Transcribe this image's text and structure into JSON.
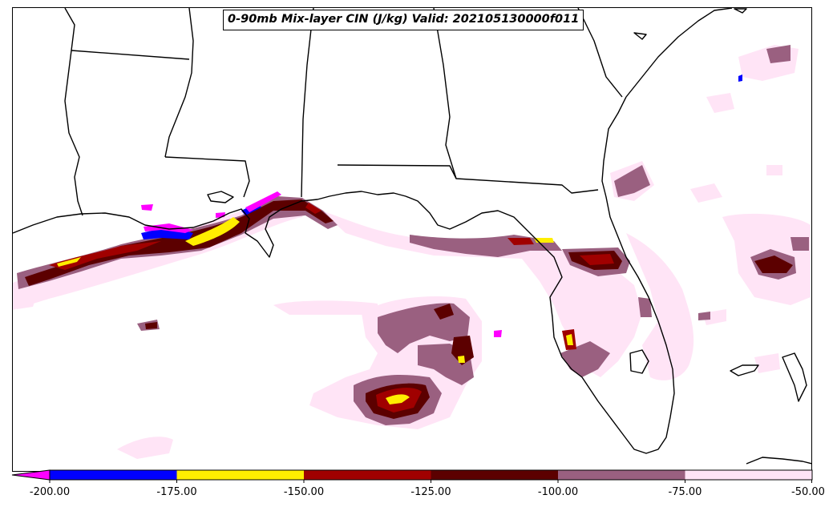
{
  "title": "0-90mb Mix-layer CIN (J/kg) Valid: 202105130000f011",
  "colorbar": {
    "ticks": [
      "-200.00",
      "-175.00",
      "-150.00",
      "-125.00",
      "-100.00",
      "-75.00",
      "-50.00"
    ],
    "colors": {
      "below_min": "#ff00ff",
      "-200_to_-175": "#0000ff",
      "-175_to_-150": "#ffee00",
      "-150_to_-125": "#a00000",
      "-125_to_-100": "#5c0000",
      "-100_to_-75": "#9a6080",
      "-75_to_-50": "#ffe4f6"
    }
  }
}
